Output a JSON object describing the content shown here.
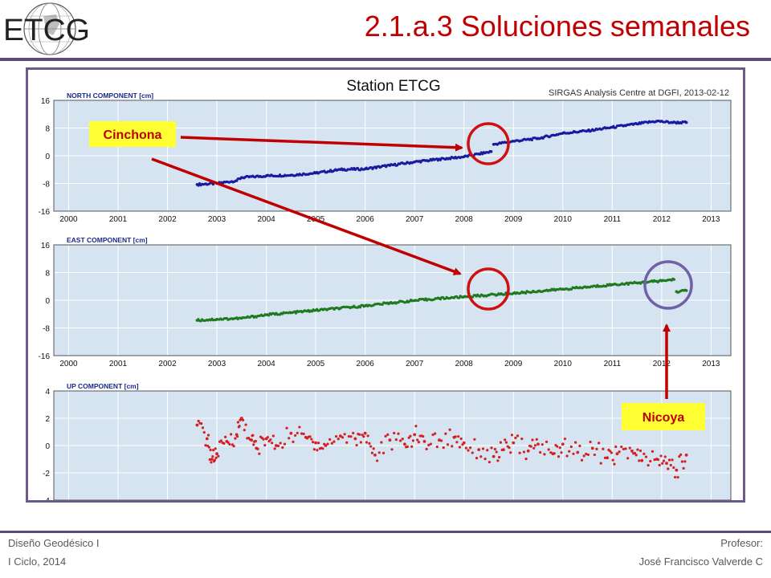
{
  "logo": {
    "text": "ETCG"
  },
  "slide_title": "2.1.a.3 Soluciones semanales",
  "footer": {
    "left_line1": "Diseño Geodésico I",
    "left_line2": "I Ciclo, 2014",
    "right_line1": "Profesor:",
    "right_line2": "José Francisco Valverde C"
  },
  "colors": {
    "title": "#c00000",
    "north": "#1a1a9e",
    "east": "#1f7a1f",
    "up": "#d42020",
    "plot_bg": "#d6e4f2",
    "rule": "#5d4a78",
    "callout_bg": "#ffff33",
    "arrow": "#c00000",
    "circle_red": "#d01010",
    "circle_purple": "#7060a8"
  },
  "chart_data": {
    "title": "Station ETCG",
    "subtitle": "SIRGAS Analysis Centre at DGFI, 2013-02-12",
    "type": "scatter",
    "x_ticks": [
      2000,
      2001,
      2002,
      2003,
      2004,
      2005,
      2006,
      2007,
      2008,
      2009,
      2010,
      2011,
      2012,
      2013
    ],
    "xlim": [
      1999.7,
      2013.4
    ],
    "panels": [
      {
        "name": "NORTH COMPONENT [cm]",
        "ylim": [
          -16,
          16
        ],
        "y_ticks": [
          -16,
          -8,
          0,
          8,
          16
        ],
        "series": [
          {
            "segment": "pre-2008.6",
            "x": [
              2002.6,
              2003.0,
              2003.4,
              2003.5,
              2004.0,
              2004.5,
              2005.0,
              2005.5,
              2006.0,
              2006.5,
              2007.0,
              2007.5,
              2008.0,
              2008.3,
              2008.55
            ],
            "y": [
              -8.3,
              -8.0,
              -7.2,
              -6.3,
              -5.8,
              -5.6,
              -5.0,
              -4.0,
              -3.8,
              -2.8,
              -1.8,
              -1.0,
              -0.3,
              0.5,
              1.2
            ]
          },
          {
            "segment": "post-2008.6",
            "x": [
              2008.6,
              2009.0,
              2009.5,
              2010.0,
              2010.5,
              2011.0,
              2011.5,
              2011.9,
              2012.2,
              2012.5
            ],
            "y": [
              3.3,
              4.2,
              5.0,
              6.5,
              7.2,
              8.2,
              9.2,
              10.0,
              9.6,
              9.6
            ]
          }
        ]
      },
      {
        "name": "EAST COMPONENT [cm]",
        "ylim": [
          -16,
          16
        ],
        "y_ticks": [
          -16,
          -8,
          0,
          8,
          16
        ],
        "series": [
          {
            "segment": "pre-2012.25",
            "x": [
              2002.6,
              2003.0,
              2003.5,
              2004.0,
              2004.5,
              2005.0,
              2005.5,
              2006.0,
              2006.5,
              2007.0,
              2007.5,
              2008.0,
              2008.5,
              2009.0,
              2009.5,
              2010.0,
              2010.5,
              2011.0,
              2011.5,
              2012.0,
              2012.25
            ],
            "y": [
              -5.8,
              -5.5,
              -5.2,
              -4.2,
              -3.6,
              -2.9,
              -2.3,
              -1.6,
              -0.8,
              -0.1,
              0.5,
              1.0,
              1.5,
              2.0,
              2.6,
              3.2,
              3.8,
              4.5,
              5.0,
              5.6,
              6.0
            ]
          },
          {
            "segment": "post-2012.25",
            "x": [
              2012.3,
              2012.5
            ],
            "y": [
              2.5,
              2.8
            ]
          }
        ]
      },
      {
        "name": "UP COMPONENT [cm]",
        "ylim": [
          -4,
          4
        ],
        "y_ticks": [
          -4,
          -2,
          0,
          2,
          4
        ],
        "series": [
          {
            "segment": "weekly",
            "x": [
              2002.6,
              2002.8,
              2002.9,
              2003.0,
              2003.2,
              2003.4,
              2003.5,
              2003.7,
              2003.8,
              2004.0,
              2004.2,
              2004.5,
              2004.8,
              2005.0,
              2005.2,
              2005.5,
              2005.8,
              2006.0,
              2006.2,
              2006.5,
              2006.8,
              2007.0,
              2007.2,
              2007.5,
              2007.8,
              2008.0,
              2008.3,
              2008.6,
              2008.8,
              2009.0,
              2009.3,
              2009.5,
              2009.8,
              2010.0,
              2010.3,
              2010.6,
              2010.9,
              2011.1,
              2011.4,
              2011.6,
              2011.9,
              2012.1,
              2012.3,
              2012.5
            ],
            "y": [
              1.5,
              0.5,
              -1.0,
              -0.6,
              0.3,
              0.8,
              2.0,
              0.4,
              -0.2,
              0.5,
              0.0,
              0.9,
              0.6,
              0.2,
              0.0,
              0.7,
              0.5,
              0.9,
              -0.7,
              0.4,
              0.1,
              0.8,
              0.3,
              0.4,
              0.6,
              0.2,
              -0.3,
              -0.8,
              -0.3,
              0.2,
              -0.4,
              0.1,
              -0.6,
              0.1,
              -0.5,
              -0.2,
              -0.9,
              -0.6,
              -0.4,
              -1.1,
              -1.0,
              -1.3,
              -1.8,
              -0.7
            ]
          }
        ]
      }
    ],
    "annotations": [
      {
        "label": "Cinchona",
        "marks": "offset at 2008.6 in NORTH and EAST components"
      },
      {
        "label": "Nicoya",
        "marks": "offset at 2012.7 in EAST component"
      }
    ]
  }
}
